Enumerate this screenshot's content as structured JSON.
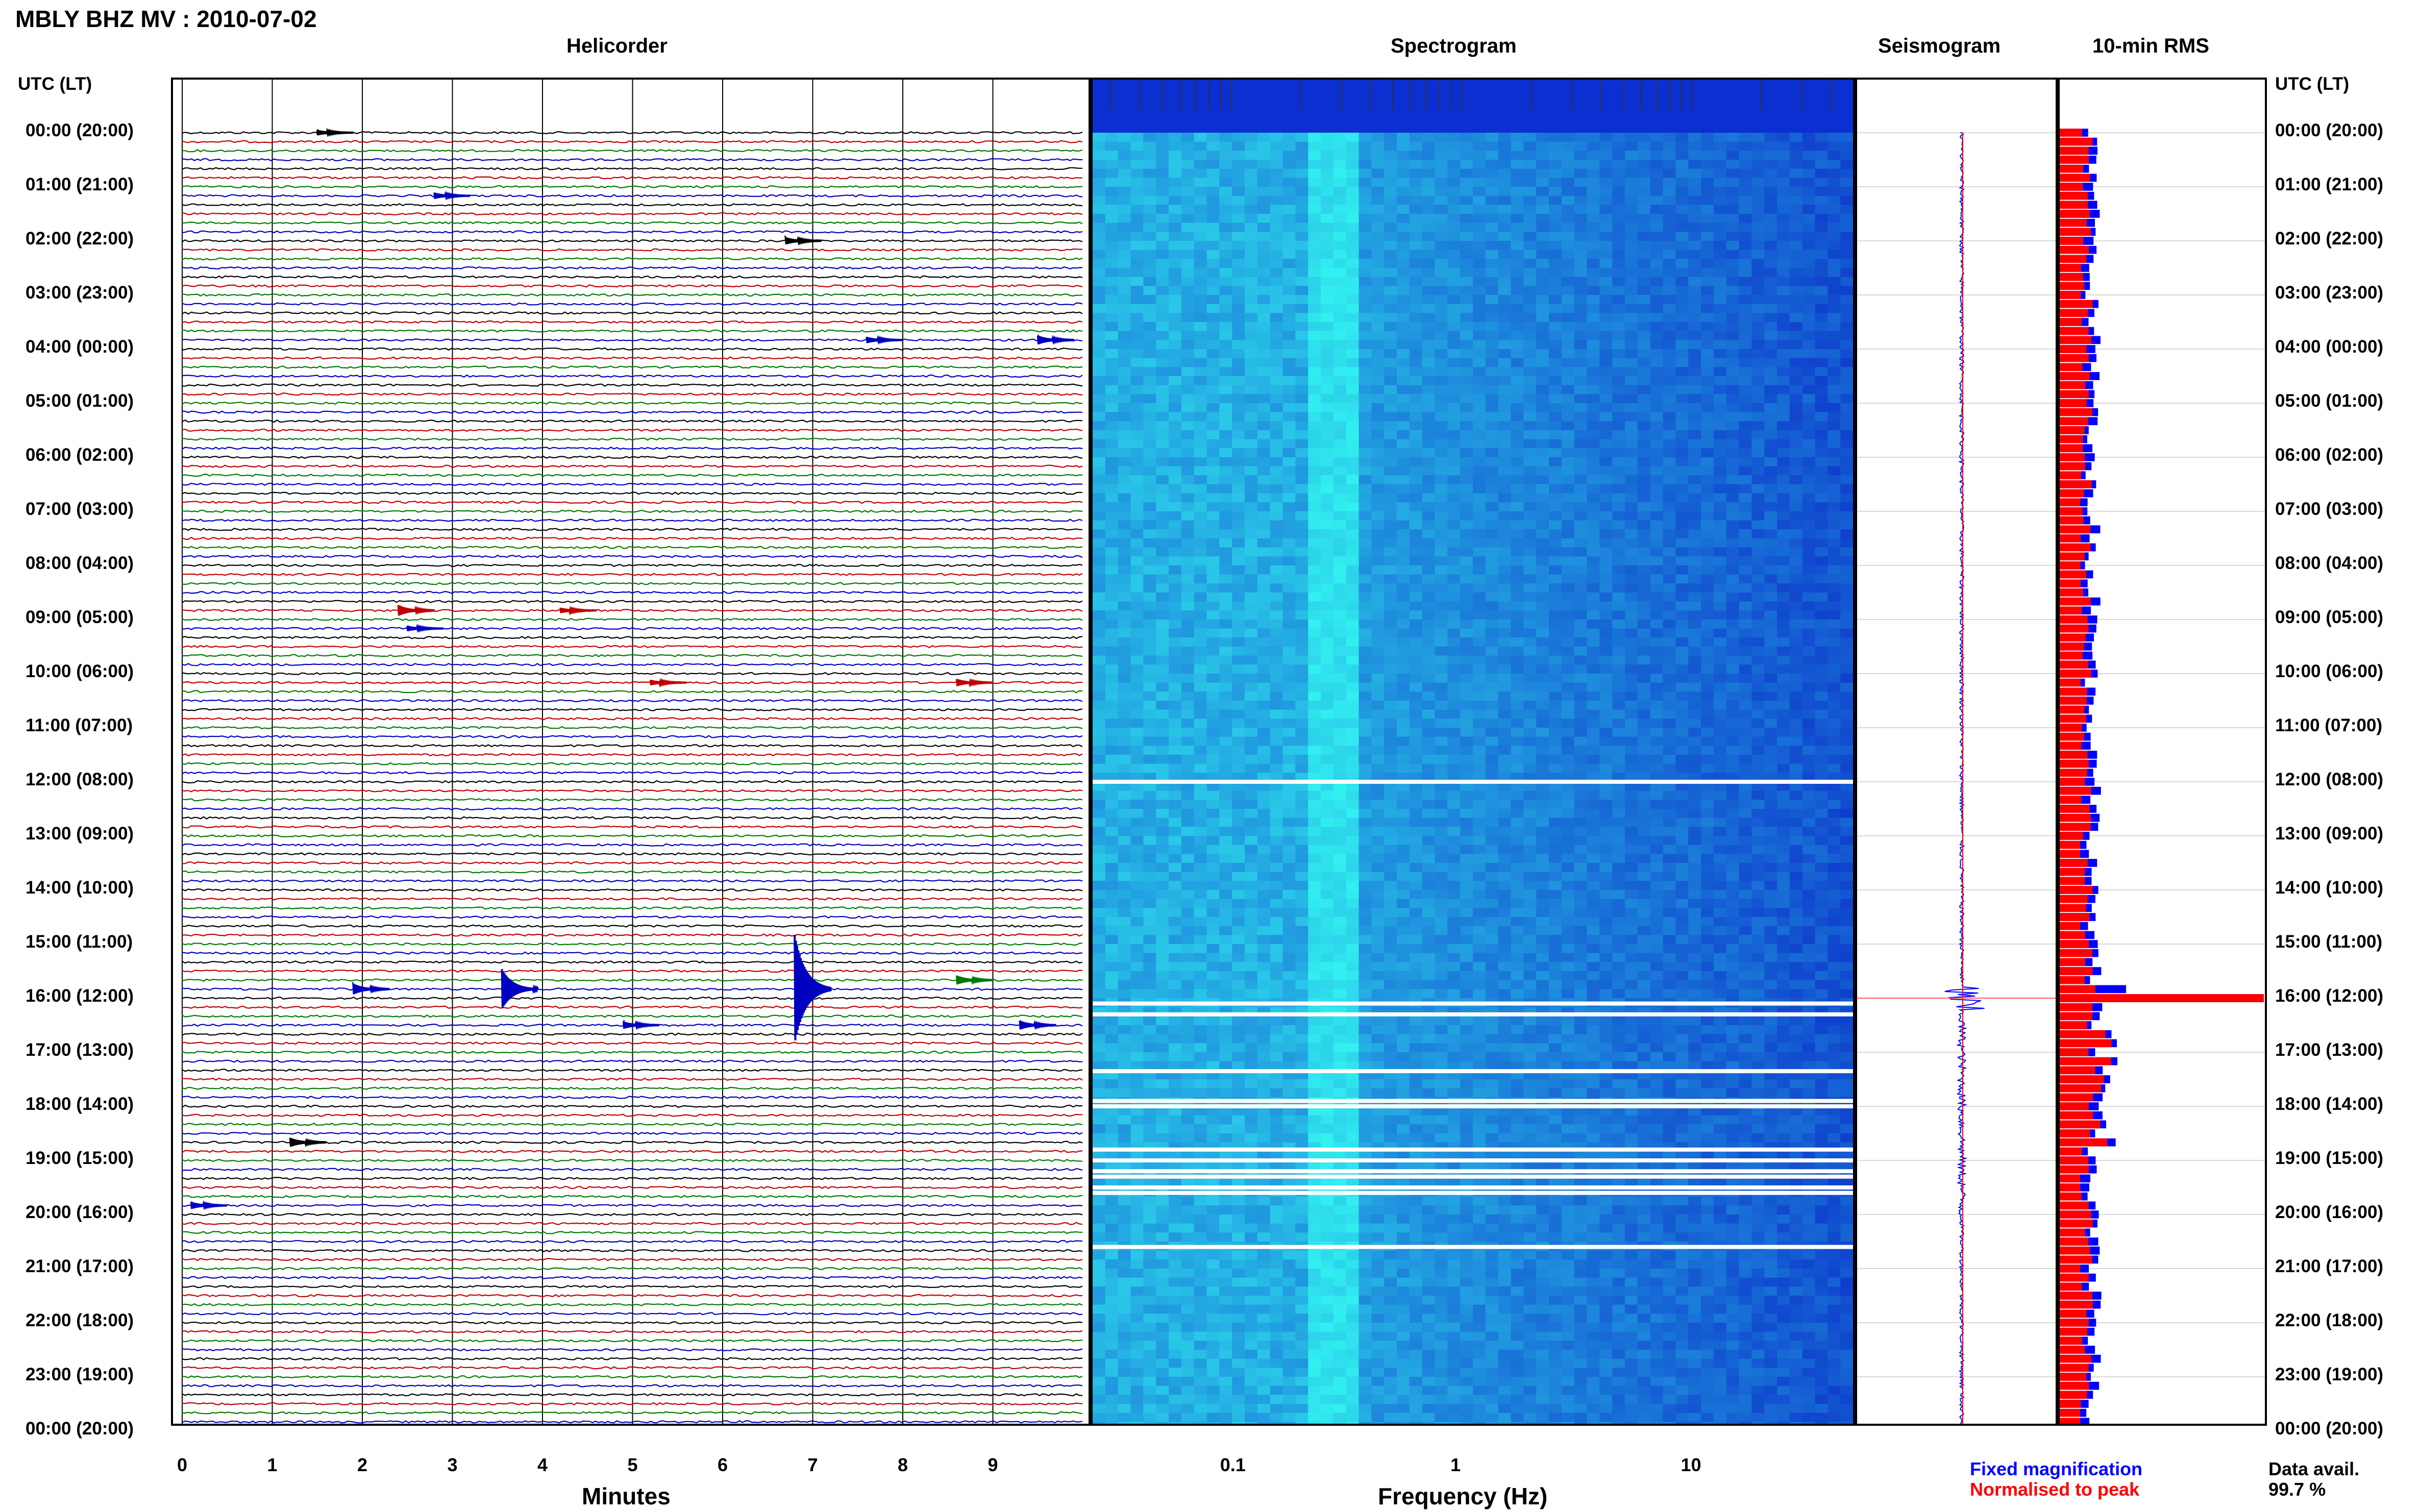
{
  "header": {
    "station_title": "MBLY BHZ MV : 2010-07-02",
    "utc_label_left": "UTC (LT)",
    "utc_label_right": "UTC (LT)"
  },
  "panels": {
    "helicorder": "Helicorder",
    "spectrogram": "Spectrogram",
    "seismogram": "Seismogram",
    "rms": "10-min RMS"
  },
  "time_labels": [
    "00:00 (20:00)",
    "01:00 (21:00)",
    "02:00 (22:00)",
    "03:00 (23:00)",
    "04:00 (00:00)",
    "05:00 (01:00)",
    "06:00 (02:00)",
    "07:00 (03:00)",
    "08:00 (04:00)",
    "09:00 (05:00)",
    "10:00 (06:00)",
    "11:00 (07:00)",
    "12:00 (08:00)",
    "13:00 (09:00)",
    "14:00 (10:00)",
    "15:00 (11:00)",
    "16:00 (12:00)",
    "17:00 (13:00)",
    "18:00 (14:00)",
    "19:00 (15:00)",
    "20:00 (16:00)",
    "21:00 (17:00)",
    "22:00 (18:00)",
    "23:00 (19:00)",
    "00:00 (20:00)"
  ],
  "chart_data": [
    {
      "type": "line",
      "title": "Helicorder",
      "xlabel": "Minutes",
      "xlim": [
        0,
        10
      ],
      "x_ticks": [
        "0",
        "1",
        "2",
        "3",
        "4",
        "5",
        "6",
        "7",
        "8",
        "9"
      ],
      "rows_per_hour": 6,
      "trace_colors": [
        "#000000",
        "#c00000",
        "#007a00",
        "#0000c0"
      ],
      "events": [
        {
          "hour": 0.05,
          "minute": 1.5,
          "amp": 0.3
        },
        {
          "hour": 1.1,
          "minute": 2.8,
          "amp": 0.35
        },
        {
          "hour": 2.0,
          "minute": 6.7,
          "amp": 0.4
        },
        {
          "hour": 3.8,
          "minute": 7.6,
          "amp": 0.35
        },
        {
          "hour": 3.85,
          "minute": 9.5,
          "amp": 0.5
        },
        {
          "hour": 8.8,
          "minute": 2.4,
          "amp": 0.6
        },
        {
          "hour": 8.8,
          "minute": 4.2,
          "amp": 0.3
        },
        {
          "hour": 9.1,
          "minute": 2.5,
          "amp": 0.3
        },
        {
          "hour": 10.1,
          "minute": 5.2,
          "amp": 0.3
        },
        {
          "hour": 10.1,
          "minute": 8.6,
          "amp": 0.4
        },
        {
          "hour": 15.8,
          "minute": 1.9,
          "amp": 0.6
        },
        {
          "hour": 15.8,
          "minute": 3.55,
          "amp": 2.2
        },
        {
          "hour": 15.8,
          "minute": 6.8,
          "amp": 6.0
        },
        {
          "hour": 15.6,
          "minute": 8.6,
          "amp": 0.5
        },
        {
          "hour": 16.5,
          "minute": 4.9,
          "amp": 0.4
        },
        {
          "hour": 16.5,
          "minute": 9.3,
          "amp": 0.5
        },
        {
          "hour": 18.7,
          "minute": 1.2,
          "amp": 0.5
        },
        {
          "hour": 19.9,
          "minute": 0.1,
          "amp": 0.4
        }
      ]
    },
    {
      "type": "heatmap",
      "title": "Spectrogram",
      "xlabel": "Frequency (Hz)",
      "x_scale": "log",
      "xlim": [
        0.025,
        50
      ],
      "x_ticks": [
        "0.1",
        "1",
        "10"
      ],
      "gap_hours": [
        12.0,
        16.1,
        16.3,
        17.35,
        17.9,
        18.0,
        18.8,
        19.0,
        19.2,
        19.3,
        19.5,
        19.6,
        20.6
      ]
    },
    {
      "type": "line",
      "title": "Seismogram"
    },
    {
      "type": "bar",
      "title": "10-min RMS",
      "series": [
        {
          "name": "Fixed magnification",
          "color": "#0000ff"
        },
        {
          "name": "Normalised to peak",
          "color": "#ff0000"
        }
      ],
      "peak_hour": 16.0
    }
  ],
  "footer": {
    "helicorder_xlabel": "Minutes",
    "spectrogram_xlabel": "Frequency (Hz)",
    "legend_fixed": "Fixed magnification",
    "legend_normalised": "Normalised to peak",
    "data_avail_label": "Data avail.",
    "data_avail_value": "99.7 %"
  }
}
